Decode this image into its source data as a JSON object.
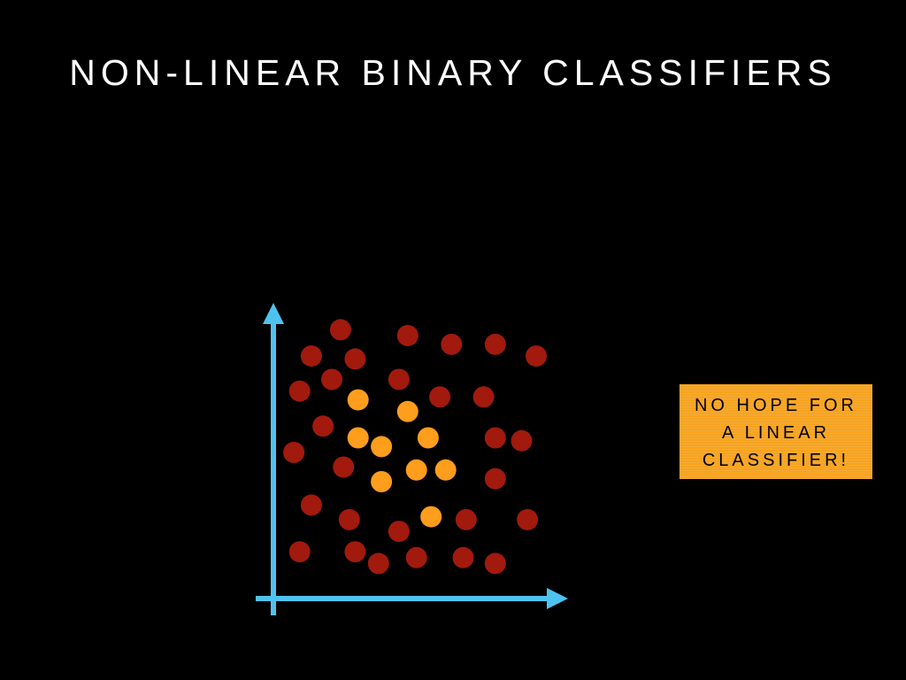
{
  "slide": {
    "title": "NON-LINEAR BINARY CLASSIFIERS"
  },
  "callout": {
    "lines": [
      "NO HOPE FOR",
      "A LINEAR",
      "CLASSIFIER!"
    ],
    "background_color": "#f6a31f"
  },
  "colors": {
    "axis": "#4ec3ef",
    "class_outer": "#a11a0d",
    "class_inner": "#ff9d1c"
  },
  "points": {
    "outer": [
      [
        2.3,
        9.2
      ],
      [
        4.6,
        9.0
      ],
      [
        6.1,
        8.7
      ],
      [
        7.6,
        8.7
      ],
      [
        1.3,
        8.3
      ],
      [
        2.8,
        8.2
      ],
      [
        9.0,
        8.3
      ],
      [
        2.0,
        7.5
      ],
      [
        4.3,
        7.5
      ],
      [
        0.9,
        7.1
      ],
      [
        5.7,
        6.9
      ],
      [
        7.2,
        6.9
      ],
      [
        1.7,
        5.9
      ],
      [
        7.6,
        5.5
      ],
      [
        8.5,
        5.4
      ],
      [
        0.7,
        5.0
      ],
      [
        2.4,
        4.5
      ],
      [
        7.6,
        4.1
      ],
      [
        1.3,
        3.2
      ],
      [
        2.6,
        2.7
      ],
      [
        4.3,
        2.3
      ],
      [
        6.6,
        2.7
      ],
      [
        8.7,
        2.7
      ],
      [
        0.9,
        1.6
      ],
      [
        2.8,
        1.6
      ],
      [
        3.6,
        1.2
      ],
      [
        4.9,
        1.4
      ],
      [
        6.5,
        1.4
      ],
      [
        7.6,
        1.2
      ]
    ],
    "inner": [
      [
        2.9,
        6.8
      ],
      [
        4.6,
        6.4
      ],
      [
        2.9,
        5.5
      ],
      [
        3.7,
        5.2
      ],
      [
        5.3,
        5.5
      ],
      [
        3.7,
        4.0
      ],
      [
        4.9,
        4.4
      ],
      [
        5.9,
        4.4
      ],
      [
        5.4,
        2.8
      ]
    ]
  }
}
